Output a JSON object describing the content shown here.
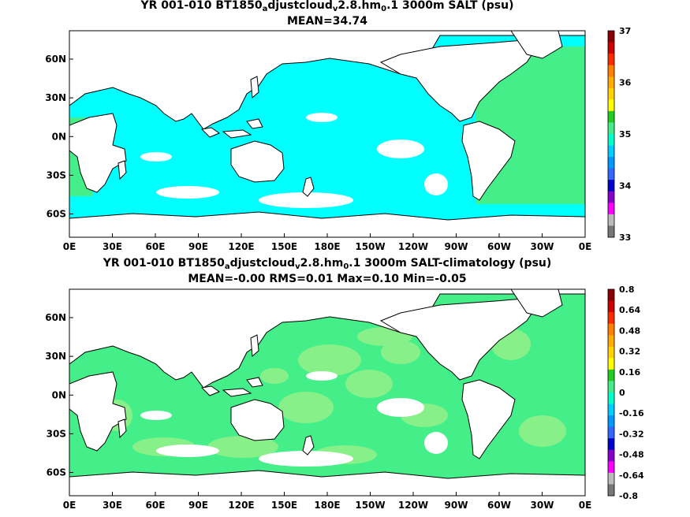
{
  "chart_data": [
    {
      "type": "heatmap",
      "title_prefix": "YR 001-010 BT1850",
      "title_sub1": "a",
      "title_mid1": "djustcloud",
      "title_sub2": "v",
      "title_mid2": "2.8.hm",
      "title_sub3": "0",
      "title_suffix": ".1 3000m SALT (psu)",
      "stats": "MEAN=34.74",
      "x_ticks": [
        "0E",
        "30E",
        "60E",
        "90E",
        "120E",
        "150E",
        "180E",
        "150W",
        "120W",
        "90W",
        "60W",
        "30W",
        "0E"
      ],
      "y_ticks": [
        "60N",
        "30N",
        "0N",
        "30S",
        "60S"
      ],
      "y_tick_values": [
        60,
        30,
        0,
        -30,
        -60
      ],
      "colorbar_labels": [
        "37",
        "36",
        "35",
        "34",
        "33"
      ],
      "colorbar_label_values": [
        37,
        36,
        35,
        34,
        33
      ],
      "colorbar_range": [
        33,
        37
      ],
      "colorbar_colors": [
        "#8b0000",
        "#cc0000",
        "#ff2a00",
        "#ff7f00",
        "#ffaa00",
        "#ffd400",
        "#ffff00",
        "#22cc22",
        "#44ee88",
        "#00ffcc",
        "#00ccff",
        "#0099ff",
        "#3366ff",
        "#0000cc",
        "#8800cc",
        "#ff00ff",
        "#bbbbbb",
        "#777777"
      ],
      "dominant_values": {
        "pacific_indian": 34.7,
        "atlantic": 34.9
      }
    },
    {
      "type": "heatmap",
      "title_prefix": "YR 001-010 BT1850",
      "title_sub1": "a",
      "title_mid1": "djustcloud",
      "title_sub2": "v",
      "title_mid2": "2.8.hm",
      "title_sub3": "0",
      "title_suffix": ".1 3000m SALT-climatology (psu)",
      "stats": "MEAN=-0.00   RMS=0.01   Max=0.10   Min=-0.05",
      "x_ticks": [
        "0E",
        "30E",
        "60E",
        "90E",
        "120E",
        "150E",
        "180E",
        "150W",
        "120W",
        "90W",
        "60W",
        "30W",
        "0E"
      ],
      "y_ticks": [
        "60N",
        "30N",
        "0N",
        "30S",
        "60S"
      ],
      "y_tick_values": [
        60,
        30,
        0,
        -30,
        -60
      ],
      "colorbar_labels": [
        "0.8",
        "0.64",
        "0.48",
        "0.32",
        "0.16",
        "0",
        "-0.16",
        "-0.32",
        "-0.48",
        "-0.64",
        "-0.8"
      ],
      "colorbar_label_values": [
        0.8,
        0.64,
        0.48,
        0.32,
        0.16,
        0,
        -0.16,
        -0.32,
        -0.48,
        -0.64,
        -0.8
      ],
      "colorbar_range": [
        -0.8,
        0.8
      ],
      "colorbar_colors": [
        "#8b0000",
        "#cc0000",
        "#ff2a00",
        "#ff7f00",
        "#ffaa00",
        "#ffd400",
        "#ffff00",
        "#22cc22",
        "#44ee88",
        "#00ffcc",
        "#00ccff",
        "#0099ff",
        "#3366ff",
        "#0000cc",
        "#8800cc",
        "#ff00ff",
        "#bbbbbb",
        "#777777"
      ],
      "dominant_values": {
        "background": 0.0,
        "patches": 0.08
      }
    }
  ]
}
